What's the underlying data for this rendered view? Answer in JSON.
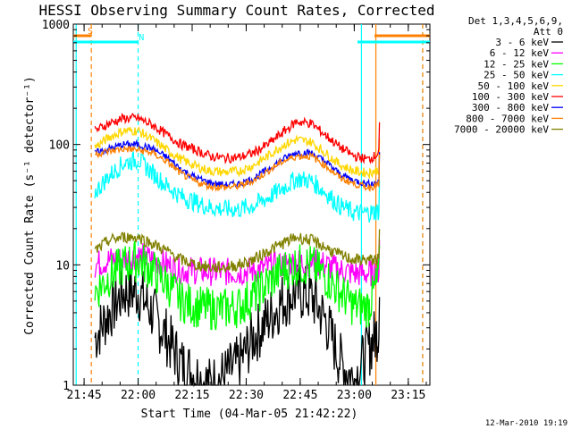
{
  "chart_data": {
    "type": "line",
    "title": "HESSI Observing Summary Count Rates, Corrected",
    "xlabel": "Start Time (04-Mar-05 21:42:22)",
    "ylabel": "Corrected Count Rate (s⁻¹ detector⁻¹)",
    "yscale": "log",
    "ylim": [
      1,
      1000
    ],
    "xlim_minutes": [
      "21:42",
      "23:21"
    ],
    "x_ticks": [
      "21:45",
      "22:00",
      "22:15",
      "22:30",
      "22:45",
      "23:00",
      "23:15"
    ],
    "y_ticks": [
      "1",
      "10",
      "100",
      "1000"
    ],
    "legend_title": [
      "Det 1,3,4,5,6,9,",
      "Att 0"
    ],
    "legend_position": "right",
    "footer": "12-Mar-2010 19:19",
    "flags": [
      {
        "label": "S",
        "color": "#ff8000",
        "start": "21:42",
        "end": "21:47"
      },
      {
        "label": "N",
        "color": "#00ffff",
        "start": "21:42",
        "end": "22:00"
      }
    ],
    "x": [
      "21:48",
      "21:52",
      "21:56",
      "22:00",
      "22:04",
      "22:08",
      "22:12",
      "22:16",
      "22:20",
      "22:24",
      "22:28",
      "22:32",
      "22:36",
      "22:40",
      "22:44",
      "22:48",
      "22:52",
      "22:56",
      "23:00",
      "23:04",
      "23:07"
    ],
    "series": [
      {
        "name": "3 - 6 keV",
        "color": "#000000",
        "values": [
          2.5,
          4,
          6,
          6,
          4,
          2.5,
          1.5,
          1.2,
          1,
          1.2,
          1.5,
          2.5,
          3.5,
          5,
          6,
          5.5,
          3.5,
          1.6,
          1.1,
          2,
          3
        ]
      },
      {
        "name": "6 - 12 keV",
        "color": "#ff00ff",
        "values": [
          10,
          11,
          11,
          12,
          11,
          10,
          9,
          9,
          8.8,
          8.7,
          8.7,
          9,
          9.5,
          10,
          10.5,
          10.5,
          10,
          9,
          8.5,
          8.5,
          9
        ]
      },
      {
        "name": "12 - 25 keV",
        "color": "#00ff00",
        "values": [
          6,
          8,
          10,
          11,
          9,
          7,
          5,
          4.5,
          4.3,
          4.3,
          4.5,
          5.5,
          7,
          9,
          10,
          10,
          8,
          6,
          4.5,
          4.5,
          8
        ]
      },
      {
        "name": "25 - 50 keV",
        "color": "#00ffff",
        "values": [
          40,
          55,
          70,
          75,
          58,
          45,
          37,
          33,
          30,
          29,
          29,
          31,
          36,
          43,
          52,
          50,
          40,
          31,
          27,
          27,
          28
        ]
      },
      {
        "name": "50 - 100 keV",
        "color": "#ffd700",
        "values": [
          95,
          115,
          130,
          130,
          110,
          90,
          75,
          66,
          60,
          59,
          60,
          67,
          80,
          98,
          110,
          105,
          85,
          68,
          60,
          58,
          62
        ]
      },
      {
        "name": "100 - 300 keV",
        "color": "#ff0000",
        "values": [
          130,
          150,
          165,
          165,
          145,
          120,
          100,
          90,
          80,
          77,
          78,
          85,
          100,
          125,
          155,
          150,
          120,
          95,
          80,
          75,
          85
        ]
      },
      {
        "name": "300 - 800 keV",
        "color": "#0000ff",
        "values": [
          85,
          92,
          100,
          100,
          92,
          78,
          62,
          53,
          48,
          46,
          47,
          52,
          62,
          75,
          86,
          85,
          72,
          57,
          50,
          47,
          48
        ]
      },
      {
        "name": "800 - 7000 keV",
        "color": "#ff8000",
        "values": [
          83,
          88,
          92,
          90,
          85,
          72,
          57,
          49,
          45,
          44,
          45,
          50,
          60,
          72,
          80,
          80,
          67,
          53,
          47,
          44,
          46
        ]
      },
      {
        "name": "7000 - 20000 keV",
        "color": "#808000",
        "values": [
          13,
          16,
          17,
          17,
          15,
          13,
          11,
          10,
          9.5,
          9.5,
          10,
          11,
          13,
          15,
          17,
          16,
          14,
          12,
          11,
          11,
          11
        ]
      }
    ],
    "vlines": [
      {
        "time": "21:42.8",
        "color": "#00ffff",
        "style": "solid"
      },
      {
        "time": "21:47",
        "color": "#ff8000",
        "style": "dashed"
      },
      {
        "time": "22:00",
        "color": "#00ffff",
        "style": "dashed"
      },
      {
        "time": "23:02",
        "color": "#00ffff",
        "style": "solid"
      },
      {
        "time": "23:06",
        "color": "#ff8000",
        "style": "solid"
      },
      {
        "time": "23:19",
        "color": "#00ffff",
        "style": "dashed"
      },
      {
        "time": "23:19",
        "color": "#ff8000",
        "style": "dashed"
      }
    ]
  }
}
